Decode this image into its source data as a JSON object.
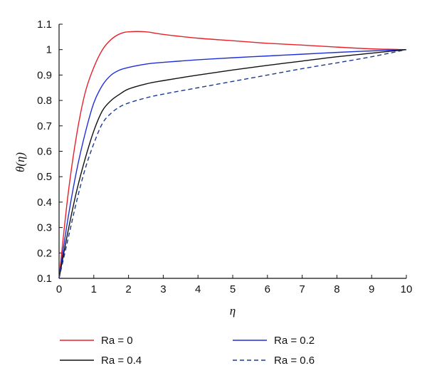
{
  "chart_data": {
    "type": "line",
    "title": "",
    "xlabel": "η",
    "ylabel": "θ(η)",
    "xlim": [
      0,
      10
    ],
    "ylim": [
      0.1,
      1.1
    ],
    "xticks": [
      "0",
      "1",
      "2",
      "3",
      "4",
      "5",
      "6",
      "7",
      "8",
      "9",
      "10"
    ],
    "yticks": [
      "0.1",
      "0.2",
      "0.3",
      "0.4",
      "0.5",
      "0.6",
      "0.7",
      "0.8",
      "0.9",
      "1",
      "1.1"
    ],
    "grid": false,
    "legend_position": "bottom",
    "series": [
      {
        "name": "Ra = 0",
        "color": "#e8202a",
        "dash": "solid",
        "x": [
          0,
          0.25,
          0.5,
          0.75,
          1.0,
          1.25,
          1.5,
          1.75,
          2.0,
          2.5,
          3.0,
          4.0,
          5.0,
          6.0,
          7.0,
          8.0,
          9.0,
          10.0
        ],
        "y": [
          0.1,
          0.42,
          0.66,
          0.83,
          0.93,
          1.0,
          1.04,
          1.062,
          1.07,
          1.07,
          1.06,
          1.045,
          1.035,
          1.025,
          1.018,
          1.01,
          1.003,
          1.0
        ]
      },
      {
        "name": "Ra = 0.2",
        "color": "#1f2fd6",
        "dash": "solid",
        "x": [
          0,
          0.25,
          0.5,
          0.75,
          1.0,
          1.25,
          1.5,
          1.75,
          2.0,
          2.5,
          3.0,
          4.0,
          5.0,
          6.0,
          7.0,
          8.0,
          9.0,
          10.0
        ],
        "y": [
          0.1,
          0.33,
          0.52,
          0.67,
          0.79,
          0.86,
          0.9,
          0.92,
          0.93,
          0.943,
          0.95,
          0.96,
          0.968,
          0.975,
          0.982,
          0.989,
          0.995,
          1.0
        ]
      },
      {
        "name": "Ra = 0.4",
        "color": "#111111",
        "dash": "solid",
        "x": [
          0,
          0.25,
          0.5,
          0.75,
          1.0,
          1.25,
          1.5,
          1.75,
          2.0,
          2.5,
          3.0,
          4.0,
          5.0,
          6.0,
          7.0,
          8.0,
          9.0,
          10.0
        ],
        "y": [
          0.1,
          0.28,
          0.44,
          0.57,
          0.68,
          0.76,
          0.8,
          0.825,
          0.845,
          0.865,
          0.878,
          0.9,
          0.92,
          0.938,
          0.955,
          0.972,
          0.986,
          1.0
        ]
      },
      {
        "name": "Ra = 0.6",
        "color": "#1a3a8f",
        "dash": "dashed",
        "x": [
          0,
          0.25,
          0.5,
          0.75,
          1.0,
          1.25,
          1.5,
          1.75,
          2.0,
          2.5,
          3.0,
          4.0,
          5.0,
          6.0,
          7.0,
          8.0,
          9.0,
          10.0
        ],
        "y": [
          0.1,
          0.25,
          0.4,
          0.53,
          0.63,
          0.71,
          0.75,
          0.775,
          0.79,
          0.81,
          0.825,
          0.85,
          0.875,
          0.9,
          0.925,
          0.948,
          0.972,
          1.0
        ]
      }
    ]
  }
}
